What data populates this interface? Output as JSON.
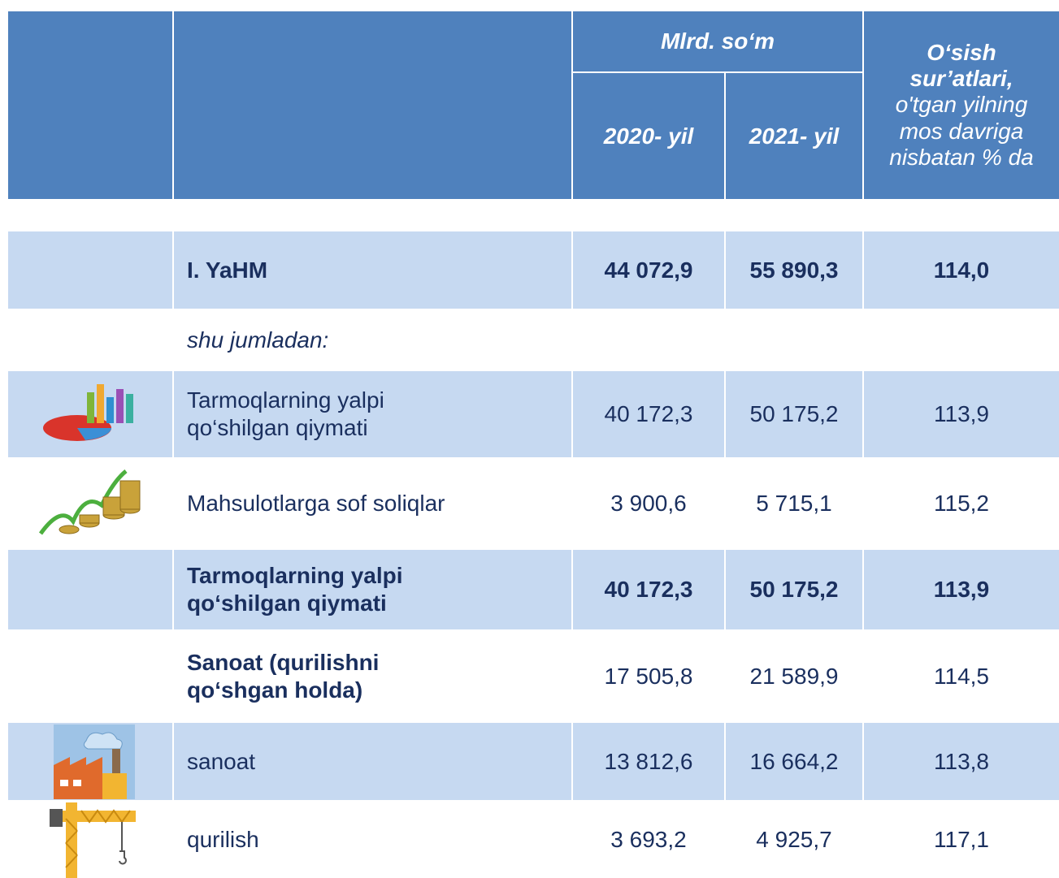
{
  "header": {
    "group": "Mlrd. so‘m",
    "year1": "2020- yil",
    "year2": "2021- yil",
    "growth_title": "O‘sish sur’atlari,",
    "growth_note": "o'tgan yilning mos davriga nisbatan % da"
  },
  "table": {
    "rows": [
      {
        "label": "I. YaHM",
        "v2020": "44 072,9",
        "v2021": "55 890,3",
        "growth": "114,0"
      },
      {
        "label": "shu jumladan:"
      },
      {
        "label": "Tarmoqlarning yalpi qo‘shilgan qiymati",
        "v2020": "40 172,3",
        "v2021": "50 175,2",
        "growth": "113,9"
      },
      {
        "label": "Mahsulotlarga sof soliqlar",
        "v2020": "3 900,6",
        "v2021": "5 715,1",
        "growth": "115,2"
      },
      {
        "label": "Tarmoqlarning yalpi qo‘shilgan qiymati",
        "v2020": "40 172,3",
        "v2021": "50 175,2",
        "growth": "113,9"
      },
      {
        "label": "Sanoat (qurilishni qo‘shgan holda)",
        "v2020": "17 505,8",
        "v2021": "21 589,9",
        "growth": "114,5"
      },
      {
        "label": "sanoat",
        "v2020": "13 812,6",
        "v2021": "16 664,2",
        "growth": "113,8"
      },
      {
        "label": "qurilish",
        "v2020": "3 693,2",
        "v2021": "4 925,7",
        "growth": "117,1"
      }
    ]
  }
}
